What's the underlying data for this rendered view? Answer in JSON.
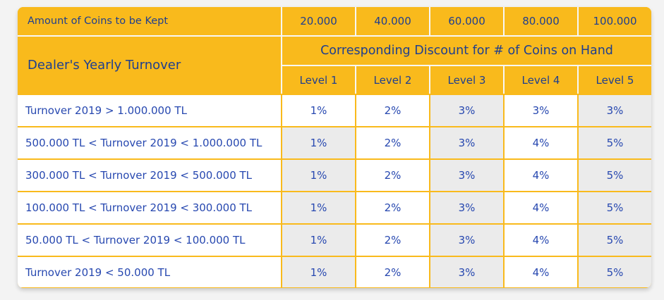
{
  "table": {
    "coins_label": "Amount of Coins to be Kept",
    "coin_amounts": [
      "20.000",
      "40.000",
      "60.000",
      "80.000",
      "100.000"
    ],
    "turnover_label": "Dealer's Yearly Turnover",
    "discount_title": "Corresponding Discount for # of Coins on Hand",
    "levels": [
      "Level 1",
      "Level 2",
      "Level 3",
      "Level 4",
      "Level 5"
    ],
    "rows": [
      {
        "turnover": "Turnover 2019 > 1.000.000 TL",
        "discounts": [
          "1%",
          "2%",
          "3%",
          "3%",
          "3%"
        ]
      },
      {
        "turnover": "500.000 TL < Turnover 2019 < 1.000.000 TL",
        "discounts": [
          "1%",
          "2%",
          "3%",
          "4%",
          "5%"
        ]
      },
      {
        "turnover": "300.000 TL < Turnover 2019 < 500.000 TL",
        "discounts": [
          "1%",
          "2%",
          "3%",
          "4%",
          "5%"
        ]
      },
      {
        "turnover": "100.000 TL < Turnover 2019 < 300.000 TL",
        "discounts": [
          "1%",
          "2%",
          "3%",
          "4%",
          "5%"
        ]
      },
      {
        "turnover": "50.000 TL < Turnover 2019 < 100.000 TL",
        "discounts": [
          "1%",
          "2%",
          "3%",
          "4%",
          "5%"
        ]
      },
      {
        "turnover": "Turnover 2019 < 50.000 TL",
        "discounts": [
          "1%",
          "2%",
          "3%",
          "4%",
          "5%"
        ]
      }
    ]
  },
  "colors": {
    "header_background": "#f9ba1c",
    "header_text": "#1f3f8f",
    "body_text": "#2748b0",
    "cell_white": "#ffffff",
    "cell_grey": "#ebebeb"
  }
}
